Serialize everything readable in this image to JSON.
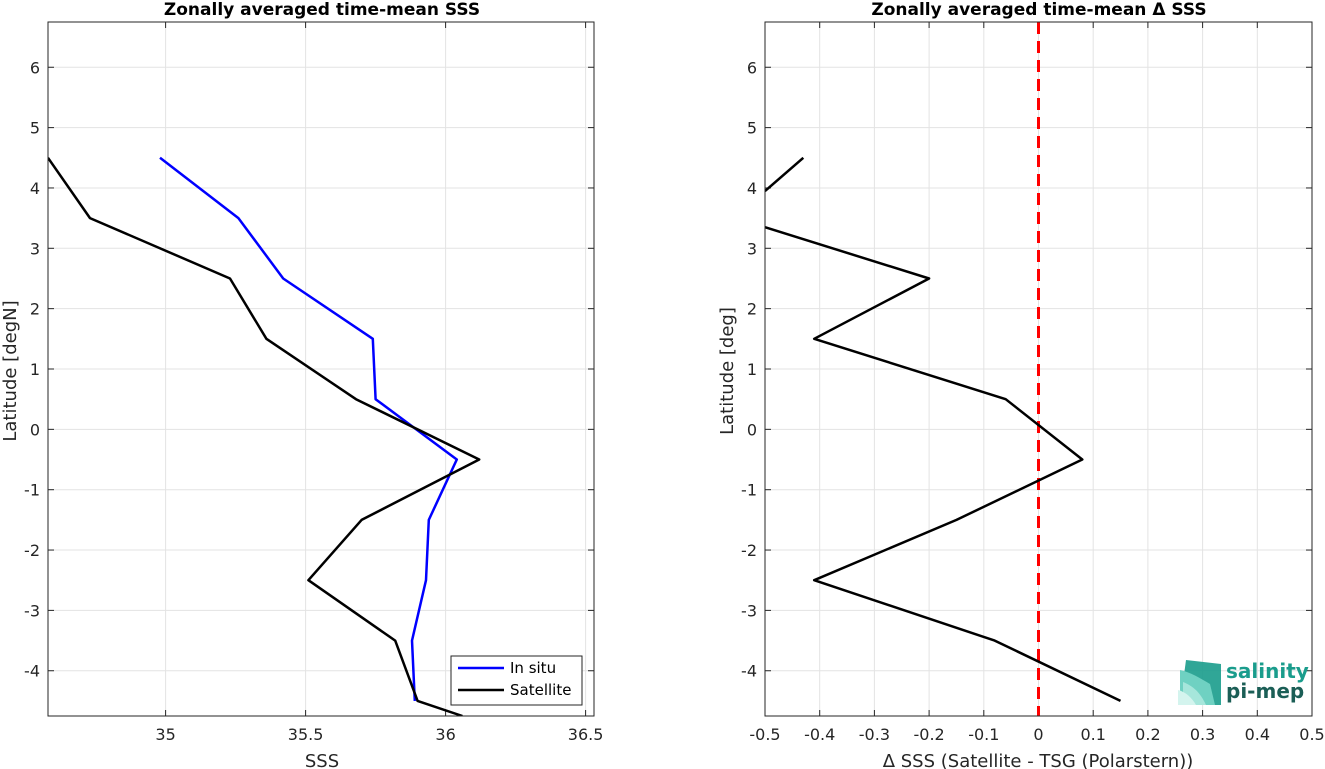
{
  "chart_data": [
    {
      "type": "line",
      "title": "Zonally averaged time-mean SSS",
      "xlabel": "SSS",
      "ylabel": "Latitude [degN]",
      "xlim": [
        34.58,
        36.53
      ],
      "ylim": [
        -4.75,
        6.75
      ],
      "xticks": [
        35,
        35.5,
        36,
        36.5
      ],
      "xtick_labels": [
        "35",
        "35.5",
        "36",
        "36.5"
      ],
      "yticks": [
        -4,
        -3,
        -2,
        -1,
        0,
        1,
        2,
        3,
        4,
        5,
        6
      ],
      "ytick_labels": [
        "-4",
        "-3",
        "-2",
        "-1",
        "0",
        "1",
        "2",
        "3",
        "4",
        "5",
        "6"
      ],
      "grid": true,
      "legend": "bottom-right",
      "series": [
        {
          "name": "In situ",
          "color": "#0000ff",
          "x": [
            34.98,
            35.26,
            35.42,
            35.74,
            35.75,
            36.04,
            35.94,
            35.93,
            35.88,
            35.89
          ],
          "y": [
            4.5,
            3.5,
            2.5,
            1.5,
            0.5,
            -0.5,
            -1.5,
            -2.5,
            -3.5,
            -4.5
          ]
        },
        {
          "name": "Satellite",
          "color": "#000000",
          "x": [
            34.58,
            34.73,
            35.23,
            35.36,
            35.68,
            36.12,
            35.7,
            35.51,
            35.82,
            35.9,
            36.06
          ],
          "y": [
            4.5,
            3.5,
            2.5,
            1.5,
            0.5,
            -0.5,
            -1.5,
            -2.5,
            -3.5,
            -4.5,
            -4.75
          ]
        }
      ]
    },
    {
      "type": "line",
      "title": "Zonally averaged time-mean Δ SSS",
      "xlabel": "Δ SSS (Satellite - TSG (Polarstern))",
      "ylabel": "Latitude [deg]",
      "xlim": [
        -0.5,
        0.5
      ],
      "ylim": [
        -4.75,
        6.75
      ],
      "xticks": [
        -0.5,
        -0.4,
        -0.3,
        -0.2,
        -0.1,
        0,
        0.1,
        0.2,
        0.3,
        0.4,
        0.5
      ],
      "xtick_labels": [
        "-0.5",
        "-0.4",
        "-0.3",
        "-0.2",
        "-0.1",
        "0",
        "0.1",
        "0.2",
        "0.3",
        "0.4",
        "0.5"
      ],
      "yticks": [
        -4,
        -3,
        -2,
        -1,
        0,
        1,
        2,
        3,
        4,
        5,
        6
      ],
      "ytick_labels": [
        "-4",
        "-3",
        "-2",
        "-1",
        "0",
        "1",
        "2",
        "3",
        "4",
        "5",
        "6"
      ],
      "grid": true,
      "reference_line": {
        "x": 0,
        "color": "#ff0000",
        "style": "dashed"
      },
      "series": [
        {
          "color": "#000000",
          "segments": [
            {
              "x": [
                -0.43,
                -0.5
              ],
              "y": [
                4.5,
                3.95
              ]
            },
            {
              "x": [
                -0.5,
                -0.2,
                -0.41,
                -0.06,
                0.08,
                -0.15,
                -0.41,
                -0.08,
                0.15
              ],
              "y": [
                3.35,
                2.5,
                1.5,
                0.5,
                -0.5,
                -1.5,
                -2.5,
                -3.5,
                -4.5
              ]
            }
          ]
        }
      ]
    }
  ],
  "logo": {
    "line1": "salinity",
    "line2": "pi-mep",
    "color": "#1a9c8c",
    "dark_color": "#1b5e56"
  }
}
